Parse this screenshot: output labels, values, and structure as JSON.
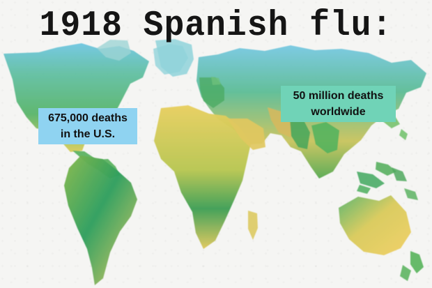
{
  "title": "1918 Spanish flu:",
  "labels": {
    "us_deaths_line1": "675,000 deaths",
    "us_deaths_line2": "in the U.S.",
    "world_deaths_line1": "50 million deaths",
    "world_deaths_line2": "worldwide"
  },
  "colors": {
    "background": "#f5f5f3",
    "us_label_bg": "#8fd3f1",
    "world_label_bg": "#70d3b7",
    "water": "#8ccfe0",
    "green": "#49b36d",
    "yellow": "#e2d45e",
    "blue": "#4eb2c9"
  }
}
